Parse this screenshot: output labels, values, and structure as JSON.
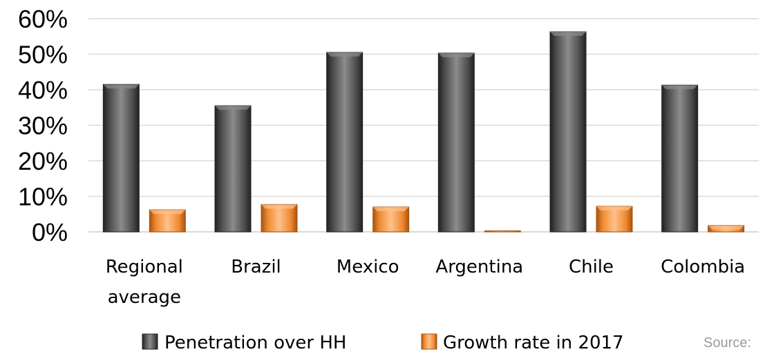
{
  "chart_data": {
    "type": "bar",
    "categories": [
      [
        "Regional",
        "average"
      ],
      [
        "Brazil"
      ],
      [
        "Mexico"
      ],
      [
        "Argentina"
      ],
      [
        "Chile"
      ],
      [
        "Colombia"
      ]
    ],
    "series": [
      {
        "name": "Penetration over HH",
        "values": [
          41.5,
          35.5,
          50.5,
          50.3,
          56.3,
          41.3
        ]
      },
      {
        "name": "Growth rate in 2017",
        "values": [
          6.2,
          7.7,
          7.0,
          0.3,
          7.2,
          1.8
        ]
      }
    ],
    "ylim": [
      0,
      60
    ],
    "yticks": [
      "0%",
      "10%",
      "20%",
      "30%",
      "40%",
      "50%",
      "60%"
    ],
    "grid": true,
    "legend_position": "bottom",
    "colors": {
      "series1_base": "#4d4d4d",
      "series1_light": "#8c8c8c",
      "series1_dark": "#222222",
      "series2_base": "#ef8a32",
      "series2_light": "#ffc08a",
      "series2_dark": "#a6530f"
    }
  },
  "source_label": "Source:"
}
